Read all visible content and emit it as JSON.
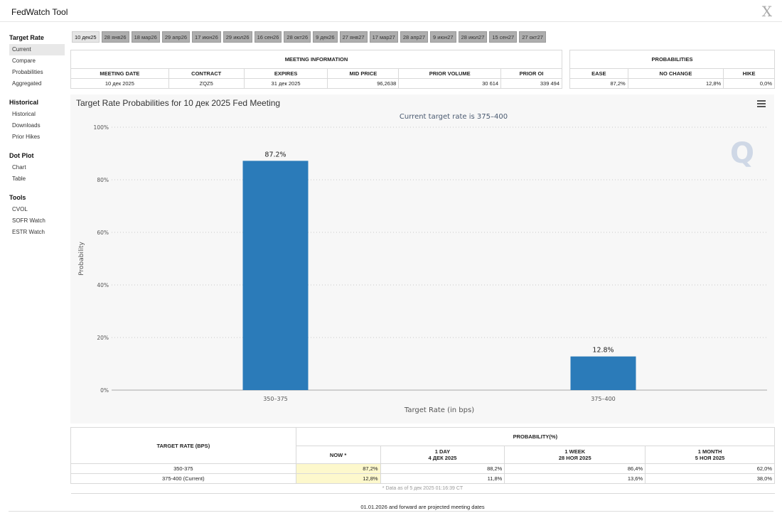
{
  "app": {
    "title": "FedWatch Tool"
  },
  "sidebar": {
    "sections": [
      {
        "heading": "Target Rate",
        "items": [
          "Current",
          "Compare",
          "Probabilities",
          "Aggregated"
        ]
      },
      {
        "heading": "Historical",
        "items": [
          "Historical",
          "Downloads",
          "Prior Hikes"
        ]
      },
      {
        "heading": "Dot Plot",
        "items": [
          "Chart",
          "Table"
        ]
      },
      {
        "heading": "Tools",
        "items": [
          "CVOL",
          "SOFR Watch",
          "ESTR Watch"
        ]
      }
    ],
    "active_item": "Current"
  },
  "date_tabs": [
    "10 дек25",
    "28 янв26",
    "18 мар26",
    "29 апр26",
    "17 июн26",
    "29 июл26",
    "16 сен26",
    "28 окт26",
    "9 дек26",
    "27 янв27",
    "17 мар27",
    "28 апр27",
    "9 июн27",
    "28 июл27",
    "15 сен27",
    "27 окт27"
  ],
  "active_tab_index": 0,
  "meeting_info": {
    "heading": "MEETING INFORMATION",
    "columns": [
      "MEETING DATE",
      "CONTRACT",
      "EXPIRES",
      "MID PRICE",
      "PRIOR VOLUME",
      "PRIOR OI"
    ],
    "row": [
      "10 дек 2025",
      "ZQZ5",
      "31 дек 2025",
      "96,2638",
      "30 614",
      "339 494"
    ]
  },
  "probabilities": {
    "heading": "PROBABILITIES",
    "columns": [
      "EASE",
      "NO CHANGE",
      "HIKE"
    ],
    "row": [
      "87,2%",
      "12,8%",
      "0,0%"
    ]
  },
  "chart": {
    "title": "Target Rate Probabilities for 10 дек 2025 Fed Meeting",
    "menu_icon": "hamburger-menu-icon",
    "watermark_icon": "q-logo-icon"
  },
  "chart_data": {
    "type": "bar",
    "title": "Target Rate Probabilities for 10 дек 2025 Fed Meeting",
    "subtitle": "Current target rate is 375–400",
    "categories": [
      "350–375",
      "375–400"
    ],
    "values": [
      87.2,
      12.8
    ],
    "data_labels": [
      "87.2%",
      "12.8%"
    ],
    "xlabel": "Target Rate (in bps)",
    "ylabel": "Probability",
    "ylim": [
      0,
      100
    ],
    "yticks": [
      "0%",
      "20%",
      "40%",
      "60%",
      "80%",
      "100%"
    ],
    "grid": true,
    "bar_color": "#2b7bb9"
  },
  "prob_table": {
    "rate_header": "TARGET RATE (BPS)",
    "prob_header": "PROBABILITY(%)",
    "columns": [
      {
        "label": "NOW *",
        "sub": ""
      },
      {
        "label": "1 DAY",
        "sub": "4 ДЕК 2025"
      },
      {
        "label": "1 WEEK",
        "sub": "28 НОЯ 2025"
      },
      {
        "label": "1 MONTH",
        "sub": "5 НОЯ 2025"
      }
    ],
    "rows": [
      {
        "rate": "350-375",
        "values": [
          "87,2%",
          "88,2%",
          "86,4%",
          "62,0%"
        ]
      },
      {
        "rate": "375-400 (Current)",
        "values": [
          "12,8%",
          "11,8%",
          "13,6%",
          "38,0%"
        ]
      }
    ],
    "note": "* Data as of 5 дек 2025 01:16:39 CT"
  },
  "footer_note": "01.01.2026 and forward are projected meeting dates"
}
